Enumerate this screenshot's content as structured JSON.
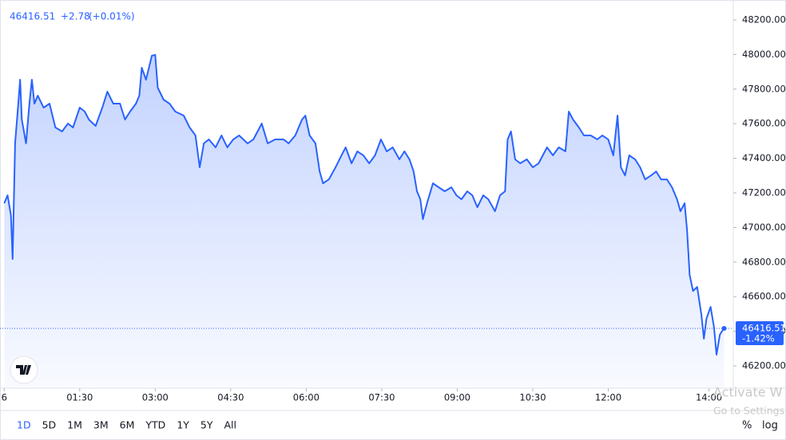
{
  "chart_data": {
    "type": "area",
    "header": {
      "last_value": 46416.51,
      "change": "+2.78",
      "change_pct": "(+0.01%)"
    },
    "last_change_pct": "-1.42%",
    "color": "#2962ff",
    "x": [
      0,
      4,
      8,
      10,
      13,
      16,
      19,
      21,
      26,
      30,
      33,
      36,
      40,
      47,
      54,
      61,
      69,
      76,
      82,
      90,
      96,
      101,
      109,
      117,
      123,
      130,
      138,
      144,
      150,
      157,
      161,
      164,
      169,
      176,
      180,
      183,
      190,
      197,
      204,
      214,
      221,
      228,
      233,
      238,
      244,
      252,
      259,
      266,
      273,
      280,
      290,
      297,
      307,
      314,
      323,
      333,
      339,
      347,
      355,
      359,
      364,
      371,
      376,
      380,
      387,
      395,
      402,
      407,
      414,
      421,
      428,
      435,
      442,
      449,
      456,
      463,
      471,
      477,
      483,
      488,
      492,
      496,
      499,
      504,
      511,
      518,
      525,
      533,
      539,
      545,
      552,
      558,
      564,
      571,
      577,
      585,
      591,
      597,
      600,
      604,
      609,
      615,
      623,
      630,
      637,
      647,
      654,
      661,
      669,
      673,
      678,
      685,
      691,
      699,
      707,
      713,
      720,
      726,
      731,
      735,
      740,
      745,
      752,
      758,
      764,
      771,
      777,
      783,
      790,
      796,
      802,
      806,
      811,
      814,
      817,
      821,
      826,
      831,
      834,
      837,
      842,
      846,
      849,
      853,
      856,
      858
    ],
    "values": [
      47140,
      47186,
      47071,
      46818,
      47486,
      47670,
      47854,
      47624,
      47486,
      47716,
      47854,
      47716,
      47762,
      47693,
      47716,
      47578,
      47555,
      47601,
      47578,
      47693,
      47670,
      47624,
      47587,
      47693,
      47785,
      47716,
      47716,
      47624,
      47670,
      47716,
      47762,
      47924,
      47854,
      47993,
      47998,
      47808,
      47739,
      47716,
      47670,
      47647,
      47578,
      47532,
      47348,
      47486,
      47509,
      47463,
      47532,
      47463,
      47509,
      47532,
      47486,
      47509,
      47601,
      47486,
      47509,
      47509,
      47486,
      47532,
      47624,
      47647,
      47532,
      47486,
      47324,
      47255,
      47278,
      47348,
      47417,
      47463,
      47371,
      47440,
      47417,
      47371,
      47417,
      47509,
      47440,
      47463,
      47394,
      47440,
      47394,
      47324,
      47209,
      47163,
      47048,
      47140,
      47255,
      47232,
      47209,
      47232,
      47186,
      47163,
      47209,
      47186,
      47117,
      47186,
      47163,
      47094,
      47186,
      47209,
      47509,
      47555,
      47394,
      47371,
      47394,
      47348,
      47371,
      47463,
      47417,
      47463,
      47440,
      47670,
      47624,
      47578,
      47532,
      47532,
      47509,
      47532,
      47509,
      47417,
      47647,
      47348,
      47301,
      47417,
      47394,
      47348,
      47278,
      47301,
      47324,
      47278,
      47278,
      47232,
      47163,
      47094,
      47140,
      46979,
      46725,
      46633,
      46656,
      46495,
      46357,
      46472,
      46541,
      46426,
      46265,
      46380,
      46403,
      46416.51
    ],
    "xlim": [
      -5,
      869
    ],
    "ylim": [
      46071,
      48315
    ],
    "xticks": [
      {
        "value": 0,
        "label": "6"
      },
      {
        "value": 90,
        "label": "01:30"
      },
      {
        "value": 180,
        "label": "03:00"
      },
      {
        "value": 270,
        "label": "04:30"
      },
      {
        "value": 360,
        "label": "06:00"
      },
      {
        "value": 450,
        "label": "07:30"
      },
      {
        "value": 540,
        "label": "09:00"
      },
      {
        "value": 630,
        "label": "10:30"
      },
      {
        "value": 720,
        "label": "12:00"
      },
      {
        "value": 840,
        "label": "14:00"
      }
    ],
    "yticks": [
      {
        "value": 46200,
        "label": "46200.00"
      },
      {
        "value": 46400,
        "label": "46400.00"
      },
      {
        "value": 46600,
        "label": "46600.00"
      },
      {
        "value": 46800,
        "label": "46800.00"
      },
      {
        "value": 47000,
        "label": "47000.00"
      },
      {
        "value": 47200,
        "label": "47200.00"
      },
      {
        "value": 47400,
        "label": "47400.00"
      },
      {
        "value": 47600,
        "label": "47600.00"
      },
      {
        "value": 47800,
        "label": "47800.00"
      },
      {
        "value": 48000,
        "label": "48000.00"
      },
      {
        "value": 48200,
        "label": "48200.00"
      }
    ],
    "ranges": [
      "1D",
      "5D",
      "1M",
      "3M",
      "6M",
      "YTD",
      "1Y",
      "5Y",
      "All"
    ],
    "selected_range": 0,
    "scale_buttons": [
      "%",
      "log"
    ],
    "log_scale": false,
    "watermark": [
      "Activate W",
      "Go to Settings"
    ]
  }
}
